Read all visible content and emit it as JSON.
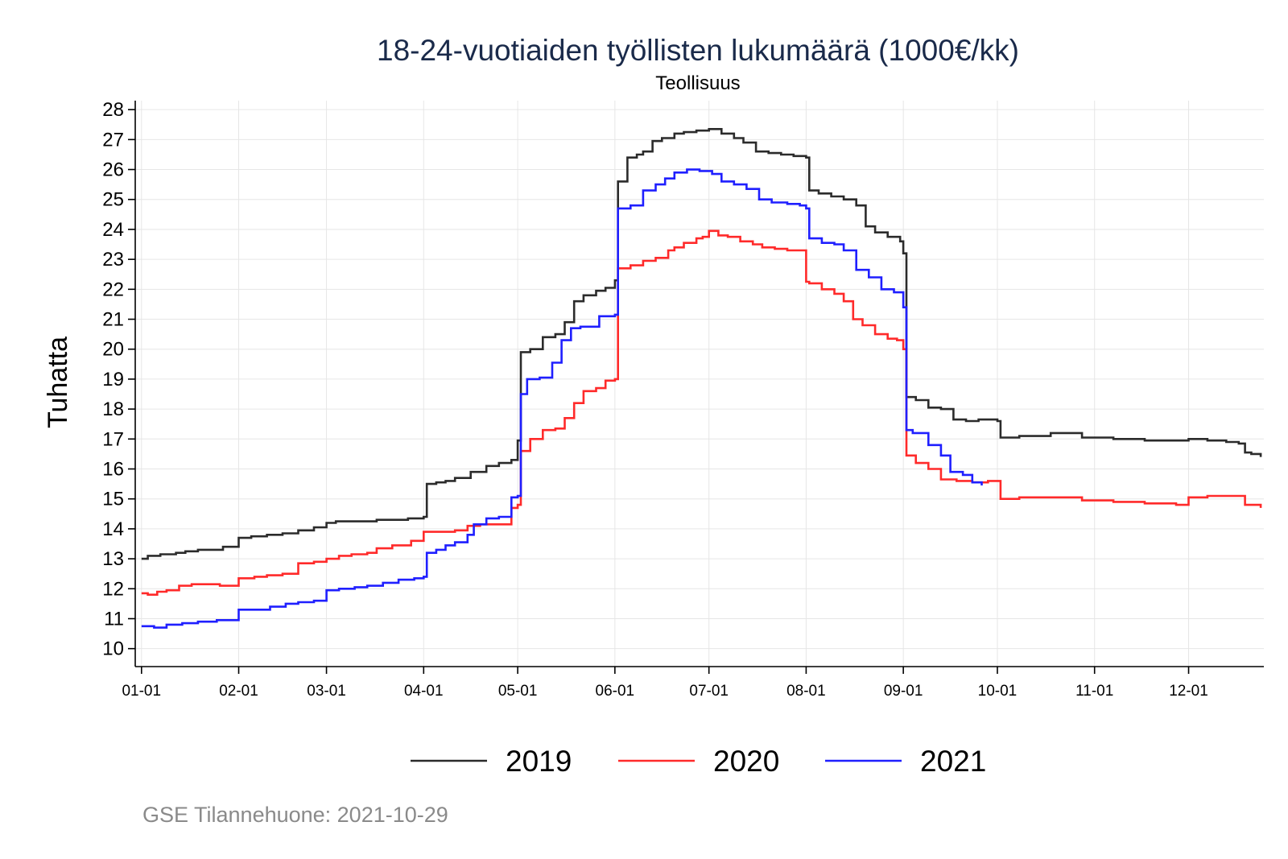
{
  "chart_data": {
    "type": "line",
    "title": "18-24-vuotiaiden työllisten lukumäärä (1000€/kk)",
    "subtitle": "Teollisuus",
    "xlabel": "",
    "ylabel": "Tuhatta",
    "ylim": [
      9.4,
      28.3
    ],
    "yticks": [
      10,
      11,
      12,
      13,
      14,
      15,
      16,
      17,
      18,
      19,
      20,
      21,
      22,
      23,
      24,
      25,
      26,
      27,
      28
    ],
    "xlim_day": [
      -2,
      358
    ],
    "xticks": [
      {
        "label": "01-01",
        "day": 0
      },
      {
        "label": "02-01",
        "day": 31
      },
      {
        "label": "03-01",
        "day": 59
      },
      {
        "label": "04-01",
        "day": 90
      },
      {
        "label": "05-01",
        "day": 120
      },
      {
        "label": "06-01",
        "day": 151
      },
      {
        "label": "07-01",
        "day": 181
      },
      {
        "label": "08-01",
        "day": 212
      },
      {
        "label": "09-01",
        "day": 243
      },
      {
        "label": "10-01",
        "day": 273
      },
      {
        "label": "11-01",
        "day": 304
      },
      {
        "label": "12-01",
        "day": 334
      }
    ],
    "grid": true,
    "legend_position": "bottom",
    "series": [
      {
        "name": "2019",
        "color": "#2b2b2b",
        "x": [
          0,
          2,
          6,
          11,
          14,
          18,
          22,
          26,
          31,
          35,
          40,
          45,
          50,
          55,
          59,
          62,
          66,
          70,
          75,
          80,
          85,
          90,
          91,
          94,
          97,
          100,
          105,
          110,
          114,
          118,
          120,
          121,
          124,
          128,
          132,
          135,
          138,
          141,
          145,
          148,
          151,
          152,
          155,
          158,
          160,
          163,
          166,
          170,
          173,
          177,
          181,
          185,
          189,
          192,
          196,
          200,
          204,
          208,
          212,
          213,
          216,
          220,
          224,
          228,
          231,
          234,
          238,
          242,
          243,
          244,
          247,
          251,
          255,
          259,
          263,
          267,
          273,
          274,
          280,
          290,
          300,
          310,
          320,
          330,
          334,
          336,
          340,
          346,
          350,
          352,
          354,
          357
        ],
        "values": [
          13.0,
          13.1,
          13.15,
          13.2,
          13.25,
          13.3,
          13.3,
          13.4,
          13.7,
          13.75,
          13.8,
          13.85,
          13.95,
          14.05,
          14.2,
          14.25,
          14.25,
          14.25,
          14.3,
          14.3,
          14.35,
          14.4,
          15.5,
          15.55,
          15.6,
          15.7,
          15.9,
          16.1,
          16.2,
          16.3,
          16.95,
          19.9,
          20.0,
          20.4,
          20.5,
          20.9,
          21.6,
          21.8,
          21.95,
          22.05,
          22.3,
          25.6,
          26.4,
          26.5,
          26.6,
          26.95,
          27.05,
          27.2,
          27.25,
          27.3,
          27.35,
          27.2,
          27.05,
          26.9,
          26.6,
          26.55,
          26.5,
          26.45,
          26.4,
          25.3,
          25.2,
          25.1,
          25.0,
          24.8,
          24.1,
          23.9,
          23.75,
          23.6,
          23.2,
          18.4,
          18.3,
          18.05,
          18.0,
          17.65,
          17.6,
          17.65,
          17.6,
          17.05,
          17.1,
          17.2,
          17.05,
          17.0,
          16.95,
          16.95,
          17.0,
          17.0,
          16.95,
          16.9,
          16.85,
          16.55,
          16.5,
          16.4
        ]
      },
      {
        "name": "2020",
        "color": "#ff2a2a",
        "x": [
          0,
          2,
          5,
          8,
          12,
          16,
          20,
          25,
          31,
          36,
          40,
          45,
          50,
          55,
          59,
          63,
          67,
          72,
          75,
          80,
          86,
          90,
          92,
          96,
          100,
          104,
          108,
          112,
          118,
          120,
          121,
          124,
          128,
          132,
          135,
          138,
          141,
          145,
          148,
          151,
          152,
          156,
          160,
          164,
          168,
          170,
          173,
          177,
          179,
          181,
          184,
          187,
          191,
          195,
          198,
          202,
          206,
          210,
          212,
          213,
          217,
          221,
          224,
          227,
          230,
          234,
          238,
          241,
          243,
          244,
          247,
          251,
          255,
          260,
          265,
          270,
          274,
          280,
          290,
          300,
          310,
          320,
          330,
          334,
          340,
          348,
          352,
          357
        ],
        "values": [
          11.85,
          11.8,
          11.9,
          11.95,
          12.1,
          12.15,
          12.15,
          12.1,
          12.35,
          12.4,
          12.45,
          12.5,
          12.85,
          12.9,
          13.0,
          13.1,
          13.15,
          13.2,
          13.35,
          13.45,
          13.6,
          13.9,
          13.9,
          13.9,
          13.95,
          14.1,
          14.15,
          14.15,
          14.7,
          14.8,
          16.6,
          17.0,
          17.3,
          17.35,
          17.7,
          18.2,
          18.6,
          18.7,
          18.95,
          19.0,
          22.7,
          22.8,
          22.95,
          23.05,
          23.3,
          23.4,
          23.55,
          23.7,
          23.75,
          23.95,
          23.8,
          23.75,
          23.6,
          23.5,
          23.4,
          23.35,
          23.3,
          23.3,
          22.25,
          22.2,
          22.0,
          21.85,
          21.6,
          21.0,
          20.8,
          20.5,
          20.35,
          20.3,
          20.0,
          16.45,
          16.2,
          16.0,
          15.65,
          15.6,
          15.55,
          15.6,
          15.0,
          15.05,
          15.05,
          14.95,
          14.9,
          14.85,
          14.8,
          15.05,
          15.1,
          15.1,
          14.8,
          14.7
        ]
      },
      {
        "name": "2021",
        "color": "#1f1fff",
        "x": [
          0,
          4,
          8,
          13,
          18,
          24,
          31,
          36,
          41,
          46,
          50,
          55,
          59,
          63,
          68,
          72,
          77,
          82,
          87,
          90,
          91,
          94,
          97,
          100,
          104,
          106,
          110,
          114,
          118,
          120,
          121,
          123,
          127,
          131,
          134,
          137,
          140,
          146,
          151,
          152,
          156,
          160,
          164,
          167,
          170,
          174,
          178,
          182,
          185,
          189,
          193,
          197,
          201,
          206,
          210,
          212,
          213,
          217,
          221,
          224,
          228,
          232,
          236,
          240,
          243,
          244,
          246,
          251,
          255,
          258,
          262,
          265,
          268
        ],
        "values": [
          10.75,
          10.7,
          10.8,
          10.85,
          10.9,
          10.95,
          11.3,
          11.3,
          11.4,
          11.5,
          11.55,
          11.6,
          11.95,
          12.0,
          12.05,
          12.1,
          12.2,
          12.3,
          12.35,
          12.4,
          13.2,
          13.3,
          13.45,
          13.55,
          13.8,
          14.15,
          14.35,
          14.4,
          15.05,
          15.1,
          18.5,
          19.0,
          19.05,
          19.55,
          20.3,
          20.7,
          20.75,
          21.1,
          21.15,
          24.7,
          24.8,
          25.3,
          25.5,
          25.7,
          25.9,
          26.0,
          25.95,
          25.85,
          25.6,
          25.5,
          25.35,
          25.0,
          24.9,
          24.85,
          24.8,
          24.7,
          23.7,
          23.55,
          23.5,
          23.3,
          22.65,
          22.4,
          22.0,
          21.9,
          21.4,
          17.3,
          17.2,
          16.8,
          16.45,
          15.9,
          15.8,
          15.55,
          15.45
        ]
      }
    ],
    "legend": [
      "2019",
      "2020",
      "2021"
    ],
    "caption": "GSE Tilannehuone: 2021-10-29"
  }
}
